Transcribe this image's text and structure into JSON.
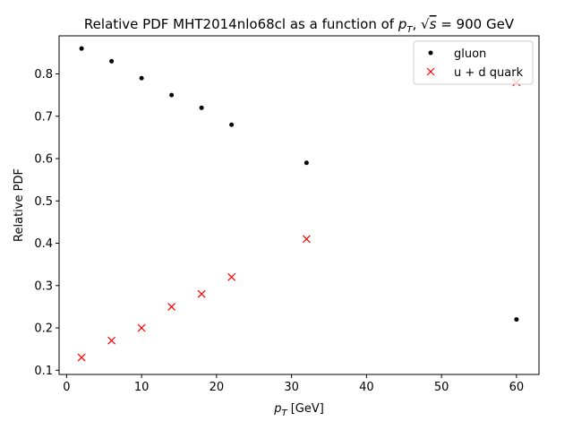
{
  "chart_data": {
    "type": "scatter",
    "title": "Relative PDF MHT2014nlo68cl as a function of p_T, √s = 900 GeV",
    "title_parts": {
      "lead": "Relative PDF MHT2014nlo68cl as a function of ",
      "pt_symbol": "p",
      "pt_subscript": "T",
      "sep": ", ",
      "sqrt_symbol": "√",
      "s_symbol": "s",
      "equals": " = ",
      "energy": " 900 GeV"
    },
    "xlabel": "p_T [GeV]",
    "xlabel_parts": {
      "symbol": "p",
      "subscript": "T",
      "unit": " [GeV]"
    },
    "ylabel": "Relative PDF",
    "xlim": [
      -1,
      63
    ],
    "ylim": [
      0.09,
      0.89
    ],
    "xticks": [
      0,
      10,
      20,
      30,
      40,
      50,
      60
    ],
    "xtick_labels": [
      "0",
      "10",
      "20",
      "30",
      "40",
      "50",
      "60"
    ],
    "yticks": [
      0.1,
      0.2,
      0.3,
      0.4,
      0.5,
      0.6,
      0.7,
      0.8
    ],
    "ytick_labels": [
      "0.1",
      "0.2",
      "0.3",
      "0.4",
      "0.5",
      "0.6",
      "0.7",
      "0.8"
    ],
    "grid": false,
    "legend_position": "top-right",
    "series": [
      {
        "name": "gluon",
        "marker": "dot",
        "color": "#000000",
        "x": [
          2,
          6,
          10,
          14,
          18,
          22,
          32,
          60
        ],
        "y": [
          0.86,
          0.83,
          0.79,
          0.75,
          0.72,
          0.68,
          0.59,
          0.22
        ]
      },
      {
        "name": "u + d quark",
        "marker": "x",
        "color": "#ff0000",
        "x": [
          2,
          6,
          10,
          14,
          18,
          22,
          32,
          60
        ],
        "y": [
          0.13,
          0.17,
          0.2,
          0.25,
          0.28,
          0.32,
          0.41,
          0.78
        ]
      }
    ]
  }
}
